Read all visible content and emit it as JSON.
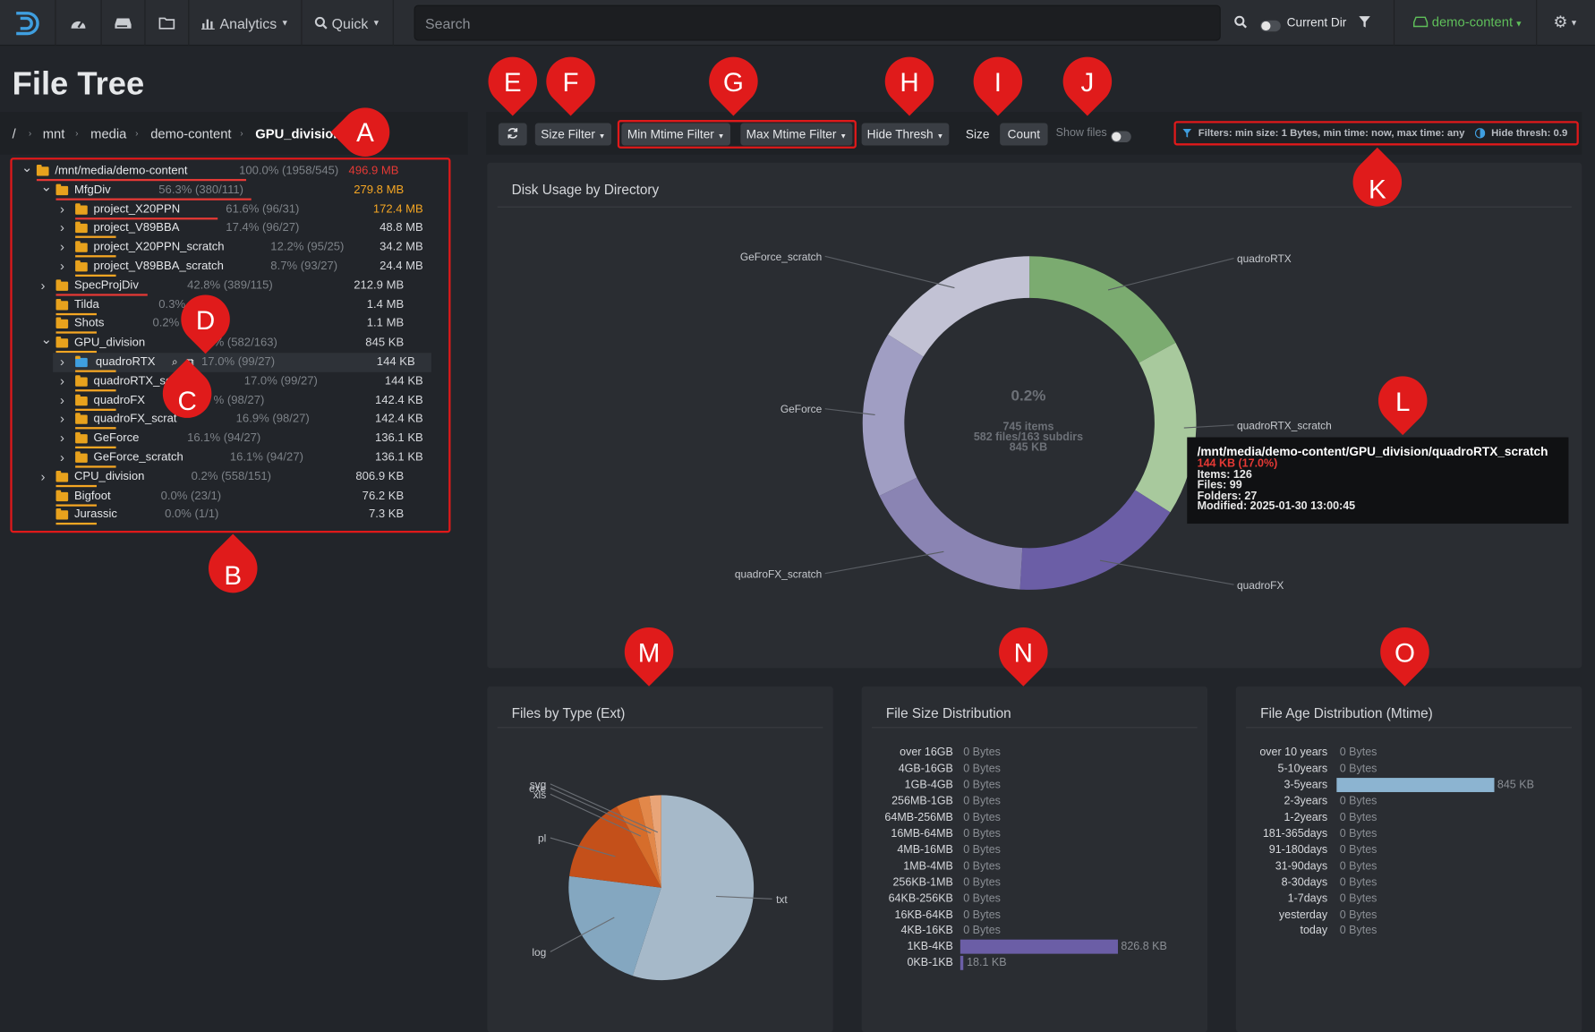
{
  "navbar": {
    "analytics_label": "Analytics",
    "quick_label": "Quick",
    "search_placeholder": "Search",
    "current_dir_label": "Current Dir",
    "index_label": "demo-content"
  },
  "page_title": "File Tree",
  "breadcrumb": [
    "/",
    "mnt",
    "media",
    "demo-content",
    "GPU_division"
  ],
  "tree": [
    {
      "indent": 0,
      "caret": "down",
      "name": "/mnt/media/demo-content",
      "pct": "100.0% (1958/545)",
      "size": "496.9 MB",
      "size_color": "#e53935",
      "bar_color": "#e53935"
    },
    {
      "indent": 1,
      "caret": "down",
      "name": "MfgDiv",
      "pct": "56.3% (380/111)",
      "size": "279.8 MB",
      "size_color": "#f5a623",
      "bar_color": "#e53935"
    },
    {
      "indent": 2,
      "caret": "right",
      "name": "project_X20PPN",
      "pct": "61.6% (96/31)",
      "size": "172.4 MB",
      "size_color": "#f5a623",
      "bar_color": "#e53935"
    },
    {
      "indent": 2,
      "caret": "right",
      "name": "project_V89BBA",
      "pct": "17.4% (96/27)",
      "size": "48.8 MB",
      "size_color": "#d6d8dc",
      "bar_color": "#f5a623"
    },
    {
      "indent": 2,
      "caret": "right",
      "name": "project_X20PPN_scratch",
      "pct": "12.2% (95/25)",
      "size": "34.2 MB",
      "size_color": "#d6d8dc",
      "bar_color": "#f5a623"
    },
    {
      "indent": 2,
      "caret": "right",
      "name": "project_V89BBA_scratch",
      "pct": "8.7% (93/27)",
      "size": "24.4 MB",
      "size_color": "#d6d8dc",
      "bar_color": "#f5a623"
    },
    {
      "indent": 1,
      "caret": "right",
      "name": "SpecProjDiv",
      "pct": "42.8% (389/115)",
      "size": "212.9 MB",
      "size_color": "#d6d8dc",
      "bar_color": "#e53935"
    },
    {
      "indent": 1,
      "caret": "none",
      "name": "Tilda",
      "pct": "0.3% (1",
      "size": "1.4 MB",
      "size_color": "#d6d8dc",
      "bar_color": "#f5a623"
    },
    {
      "indent": 1,
      "caret": "none",
      "name": "Shots",
      "pct": "0.2%",
      "size": "1.1 MB",
      "size_color": "#d6d8dc",
      "bar_color": "#f5a623"
    },
    {
      "indent": 1,
      "caret": "down",
      "name": "GPU_division",
      "pct": "% (582/163)",
      "size": "845 KB",
      "size_color": "#d6d8dc",
      "bar_color": "#f5a623"
    },
    {
      "indent": 2,
      "caret": "right",
      "name": "quadroRTX",
      "pct": "17.0% (99/27)",
      "size": "144 KB",
      "size_color": "#d6d8dc",
      "bar_color": "#f5a623",
      "selected": true
    },
    {
      "indent": 2,
      "caret": "right",
      "name": "quadroRTX_sc",
      "pct": "17.0% (99/27)",
      "size": "144 KB",
      "size_color": "#d6d8dc",
      "bar_color": "#f5a623"
    },
    {
      "indent": 2,
      "caret": "right",
      "name": "quadroFX",
      "pct": "% (98/27)",
      "size": "142.4 KB",
      "size_color": "#d6d8dc",
      "bar_color": "#f5a623"
    },
    {
      "indent": 2,
      "caret": "right",
      "name": "quadroFX_scrat",
      "pct": "16.9% (98/27)",
      "size": "142.4 KB",
      "size_color": "#d6d8dc",
      "bar_color": "#f5a623"
    },
    {
      "indent": 2,
      "caret": "right",
      "name": "GeForce",
      "pct": "16.1% (94/27)",
      "size": "136.1 KB",
      "size_color": "#d6d8dc",
      "bar_color": "#f5a623"
    },
    {
      "indent": 2,
      "caret": "right",
      "name": "GeForce_scratch",
      "pct": "16.1% (94/27)",
      "size": "136.1 KB",
      "size_color": "#d6d8dc",
      "bar_color": "#f5a623"
    },
    {
      "indent": 1,
      "caret": "right",
      "name": "CPU_division",
      "pct": "0.2% (558/151)",
      "size": "806.9 KB",
      "size_color": "#d6d8dc",
      "bar_color": "#f5a623"
    },
    {
      "indent": 1,
      "caret": "none",
      "name": "Bigfoot",
      "pct": "0.0% (23/1)",
      "size": "76.2 KB",
      "size_color": "#d6d8dc",
      "bar_color": "#f5a623"
    },
    {
      "indent": 1,
      "caret": "none",
      "name": "Jurassic",
      "pct": "0.0% (1/1)",
      "size": "7.3 KB",
      "size_color": "#d6d8dc",
      "bar_color": "#f5a623"
    }
  ],
  "toolbar": {
    "size_filter": "Size Filter",
    "min_mtime": "Min Mtime Filter",
    "max_mtime": "Max Mtime Filter",
    "hide_thresh": "Hide Thresh",
    "size": "Size",
    "count": "Count",
    "show_files": "Show files",
    "filters_text": "Filters: min size: 1 Bytes, min time: now, max time: any",
    "hide_thresh_text": "Hide thresh: 0.9"
  },
  "markers": {
    "A": "A",
    "B": "B",
    "C": "C",
    "D": "D",
    "E": "E",
    "F": "F",
    "G": "G",
    "H": "H",
    "I": "I",
    "J": "J",
    "K": "K",
    "L": "L",
    "M": "M",
    "N": "N",
    "O": "O"
  },
  "disk_usage": {
    "title": "Disk Usage by Directory",
    "center_pct": "0.2%",
    "center_items": "745 items",
    "center_files": "582 files/163 subdirs",
    "center_size": "845 KB",
    "tooltip": {
      "path": "/mnt/media/demo-content/GPU_division/quadroRTX_scratch",
      "size": "144 KB (17.0%)",
      "items": "Items: 126",
      "files": "Files: 99",
      "folders": "Folders: 27",
      "modified": "Modified: 2025-01-30 13:00:45"
    }
  },
  "chart_data": [
    {
      "type": "pie",
      "title": "Disk Usage by Directory",
      "labels": [
        "quadroRTX",
        "quadroRTX_scratch",
        "quadroFX",
        "quadroFX_scratch",
        "GeForce",
        "GeForce_scratch"
      ],
      "values": [
        17.0,
        17.0,
        16.9,
        16.9,
        16.1,
        16.1
      ],
      "colors": [
        "#7bab70",
        "#a8c99d",
        "#6b5ea6",
        "#8a84b3",
        "#a09ec3",
        "#c2c2d4"
      ]
    },
    {
      "type": "pie",
      "title": "Files by Type (Ext)",
      "labels": [
        "txt",
        "log",
        "pl",
        "xls",
        "exe",
        "svg"
      ],
      "values": [
        55,
        22,
        15,
        4,
        2,
        2
      ],
      "colors": [
        "#a6b9c9",
        "#84a7c0",
        "#c4501a",
        "#d66d2b",
        "#e2884a",
        "#e9a477"
      ]
    },
    {
      "type": "bar",
      "title": "File Size Distribution",
      "categories": [
        "over 16GB",
        "4GB-16GB",
        "1GB-4GB",
        "256MB-1GB",
        "64MB-256MB",
        "16MB-64MB",
        "4MB-16MB",
        "1MB-4MB",
        "256KB-1MB",
        "64KB-256KB",
        "16KB-64KB",
        "4KB-16KB",
        "1KB-4KB",
        "0KB-1KB"
      ],
      "values": [
        0,
        0,
        0,
        0,
        0,
        0,
        0,
        0,
        0,
        0,
        0,
        0,
        826.8,
        18.1
      ],
      "value_labels": [
        "0 Bytes",
        "0 Bytes",
        "0 Bytes",
        "0 Bytes",
        "0 Bytes",
        "0 Bytes",
        "0 Bytes",
        "0 Bytes",
        "0 Bytes",
        "0 Bytes",
        "0 Bytes",
        "0 Bytes",
        "826.8 KB",
        "18.1 KB"
      ],
      "color": "#6b5ea6"
    },
    {
      "type": "bar",
      "title": "File Age Distribution (Mtime)",
      "categories": [
        "over 10 years",
        "5-10years",
        "3-5years",
        "2-3years",
        "1-2years",
        "181-365days",
        "91-180days",
        "31-90days",
        "8-30days",
        "1-7days",
        "yesterday",
        "today"
      ],
      "values": [
        0,
        0,
        845,
        0,
        0,
        0,
        0,
        0,
        0,
        0,
        0,
        0
      ],
      "value_labels": [
        "0 Bytes",
        "0 Bytes",
        "845 KB",
        "0 Bytes",
        "0 Bytes",
        "0 Bytes",
        "0 Bytes",
        "0 Bytes",
        "0 Bytes",
        "0 Bytes",
        "0 Bytes",
        "0 Bytes"
      ],
      "color": "#8cb4d1"
    }
  ]
}
